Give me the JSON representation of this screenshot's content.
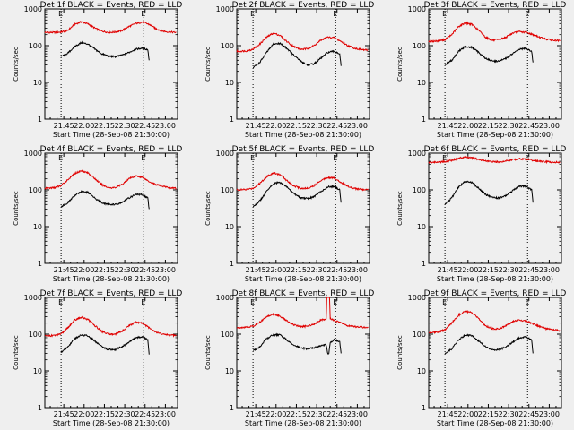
{
  "figure": {
    "background": "#efefef",
    "series_colors": {
      "events": "#000000",
      "lld": "#e00000"
    },
    "x_tick_labels": [
      "21:45",
      "22:00",
      "22:15",
      "22:30",
      "22:45",
      "23:00"
    ],
    "y_tick_labels": [
      "1",
      "10",
      "100",
      "1000"
    ],
    "x_axis_label": "Start Time (28-Sep-08 21:30:00)",
    "y_axis_label": "Counts/sec",
    "marker_label_start": "E",
    "marker_label_end": "E"
  },
  "chart_data": [
    {
      "type": "line",
      "title": "Det 1f BLACK = Events, RED = LLD",
      "xlabel": "Start Time (28-Sep-08 21:30:00)",
      "ylabel": "Counts/sec",
      "y_scale": "log",
      "xlim": [
        "21:31",
        "23:09"
      ],
      "ylim": [
        1,
        1000
      ],
      "markers": [
        "21:43",
        "22:44"
      ],
      "series": [
        {
          "color": "#e00000",
          "x": [
            "21:31",
            "21:38",
            "21:43",
            "21:48",
            "21:53",
            "21:58",
            "22:03",
            "22:08",
            "22:13",
            "22:18",
            "22:23",
            "22:28",
            "22:33",
            "22:38",
            "22:43",
            "22:48",
            "22:53",
            "22:58",
            "23:03",
            "23:08"
          ],
          "values": [
            230,
            230,
            235,
            260,
            380,
            450,
            390,
            300,
            250,
            230,
            235,
            260,
            330,
            400,
            440,
            380,
            290,
            250,
            235,
            230
          ]
        },
        {
          "color": "#000000",
          "x": [
            "21:43",
            "21:48",
            "21:53",
            "21:58",
            "22:03",
            "22:08",
            "22:13",
            "22:18",
            "22:23",
            "22:28",
            "22:33",
            "22:38",
            "22:43",
            "22:47",
            "22:48"
          ],
          "values": [
            50,
            62,
            95,
            120,
            110,
            80,
            60,
            52,
            50,
            55,
            65,
            80,
            85,
            78,
            40
          ]
        }
      ]
    },
    {
      "type": "line",
      "title": "Det 2f BLACK = Events, RED = LLD",
      "xlabel": "Start Time (28-Sep-08 21:30:00)",
      "ylabel": "Counts/sec",
      "y_scale": "log",
      "xlim": [
        "21:31",
        "23:09"
      ],
      "ylim": [
        1,
        1000
      ],
      "markers": [
        "21:43",
        "22:44"
      ],
      "series": [
        {
          "color": "#e00000",
          "x": [
            "21:31",
            "21:38",
            "21:43",
            "21:48",
            "21:53",
            "21:58",
            "22:03",
            "22:08",
            "22:13",
            "22:18",
            "22:23",
            "22:28",
            "22:33",
            "22:38",
            "22:43",
            "22:48",
            "22:53",
            "22:58",
            "23:03",
            "23:08"
          ],
          "values": [
            70,
            72,
            80,
            110,
            170,
            220,
            190,
            130,
            95,
            80,
            82,
            100,
            140,
            170,
            165,
            130,
            100,
            85,
            78,
            75
          ]
        },
        {
          "color": "#000000",
          "x": [
            "21:43",
            "21:48",
            "21:53",
            "21:58",
            "22:03",
            "22:08",
            "22:13",
            "22:18",
            "22:23",
            "22:28",
            "22:33",
            "22:38",
            "22:43",
            "22:47",
            "22:48"
          ],
          "values": [
            25,
            35,
            65,
            110,
            115,
            85,
            55,
            38,
            30,
            32,
            45,
            65,
            70,
            60,
            28
          ]
        }
      ]
    },
    {
      "type": "line",
      "title": "Det 3f BLACK = Events, RED = LLD",
      "xlabel": "Start Time (28-Sep-08 21:30:00)",
      "ylabel": "Counts/sec",
      "y_scale": "log",
      "xlim": [
        "21:31",
        "23:09"
      ],
      "ylim": [
        1,
        1000
      ],
      "markers": [
        "21:43",
        "22:44"
      ],
      "series": [
        {
          "color": "#e00000",
          "x": [
            "21:31",
            "21:38",
            "21:43",
            "21:48",
            "21:53",
            "21:58",
            "22:03",
            "22:08",
            "22:13",
            "22:18",
            "22:23",
            "22:28",
            "22:33",
            "22:38",
            "22:43",
            "22:48",
            "22:53",
            "22:58",
            "23:03",
            "23:08"
          ],
          "values": [
            130,
            135,
            145,
            200,
            330,
            420,
            380,
            260,
            170,
            140,
            145,
            170,
            220,
            240,
            230,
            200,
            170,
            150,
            140,
            135
          ]
        },
        {
          "color": "#000000",
          "x": [
            "21:43",
            "21:48",
            "21:53",
            "21:58",
            "22:03",
            "22:08",
            "22:13",
            "22:18",
            "22:23",
            "22:28",
            "22:33",
            "22:38",
            "22:43",
            "22:47",
            "22:48"
          ],
          "values": [
            30,
            40,
            70,
            95,
            90,
            65,
            45,
            38,
            38,
            45,
            60,
            80,
            85,
            70,
            35
          ]
        }
      ]
    },
    {
      "type": "line",
      "title": "Det 4f BLACK = Events, RED = LLD",
      "xlabel": "Start Time (28-Sep-08 21:30:00)",
      "ylabel": "Counts/sec",
      "y_scale": "log",
      "xlim": [
        "21:31",
        "23:09"
      ],
      "ylim": [
        1,
        1000
      ],
      "markers": [
        "21:43",
        "22:44"
      ],
      "series": [
        {
          "color": "#e00000",
          "x": [
            "21:31",
            "21:38",
            "21:43",
            "21:48",
            "21:53",
            "21:58",
            "22:03",
            "22:08",
            "22:13",
            "22:18",
            "22:23",
            "22:28",
            "22:33",
            "22:38",
            "22:43",
            "22:48",
            "22:53",
            "22:58",
            "23:03",
            "23:08"
          ],
          "values": [
            110,
            115,
            130,
            190,
            280,
            330,
            290,
            200,
            140,
            115,
            115,
            140,
            200,
            240,
            220,
            170,
            140,
            125,
            115,
            110
          ]
        },
        {
          "color": "#000000",
          "x": [
            "21:43",
            "21:48",
            "21:53",
            "21:58",
            "22:03",
            "22:08",
            "22:13",
            "22:18",
            "22:23",
            "22:28",
            "22:33",
            "22:38",
            "22:43",
            "22:47",
            "22:48"
          ],
          "values": [
            35,
            45,
            70,
            90,
            85,
            60,
            45,
            40,
            40,
            45,
            60,
            75,
            75,
            60,
            30
          ]
        }
      ]
    },
    {
      "type": "line",
      "title": "Det 5f BLACK = Events, RED = LLD",
      "xlabel": "Start Time (28-Sep-08 21:30:00)",
      "ylabel": "Counts/sec",
      "y_scale": "log",
      "xlim": [
        "21:31",
        "23:09"
      ],
      "ylim": [
        1,
        1000
      ],
      "markers": [
        "21:43",
        "22:44"
      ],
      "series": [
        {
          "color": "#e00000",
          "x": [
            "21:31",
            "21:38",
            "21:43",
            "21:48",
            "21:53",
            "21:58",
            "22:03",
            "22:08",
            "22:13",
            "22:18",
            "22:23",
            "22:28",
            "22:33",
            "22:38",
            "22:43",
            "22:48",
            "22:53",
            "22:58",
            "23:03",
            "23:08"
          ],
          "values": [
            100,
            102,
            110,
            150,
            230,
            290,
            260,
            180,
            130,
            110,
            110,
            130,
            180,
            220,
            210,
            160,
            125,
            110,
            102,
            100
          ]
        },
        {
          "color": "#000000",
          "x": [
            "21:43",
            "21:48",
            "21:53",
            "21:58",
            "22:03",
            "22:08",
            "22:13",
            "22:18",
            "22:23",
            "22:28",
            "22:33",
            "22:38",
            "22:43",
            "22:47",
            "22:48"
          ],
          "values": [
            35,
            50,
            90,
            150,
            160,
            120,
            80,
            62,
            58,
            65,
            90,
            120,
            125,
            100,
            45
          ]
        }
      ]
    },
    {
      "type": "line",
      "title": "Det 6f BLACK = Events, RED = LLD",
      "xlabel": "Start Time (28-Sep-08 21:30:00)",
      "ylabel": "Counts/sec",
      "y_scale": "log",
      "xlim": [
        "21:31",
        "23:09"
      ],
      "ylim": [
        1,
        1000
      ],
      "markers": [
        "21:43",
        "22:44"
      ],
      "series": [
        {
          "color": "#e00000",
          "x": [
            "21:31",
            "21:38",
            "21:43",
            "21:48",
            "21:53",
            "21:58",
            "22:03",
            "22:08",
            "22:13",
            "22:18",
            "22:23",
            "22:28",
            "22:33",
            "22:38",
            "22:43",
            "22:48",
            "22:53",
            "22:58",
            "23:03",
            "23:08"
          ],
          "values": [
            560,
            570,
            590,
            640,
            720,
            780,
            740,
            670,
            610,
            580,
            580,
            610,
            660,
            700,
            690,
            640,
            600,
            580,
            570,
            560
          ]
        },
        {
          "color": "#000000",
          "x": [
            "21:43",
            "21:48",
            "21:53",
            "21:58",
            "22:03",
            "22:08",
            "22:13",
            "22:18",
            "22:23",
            "22:28",
            "22:33",
            "22:38",
            "22:43",
            "22:47",
            "22:48"
          ],
          "values": [
            40,
            60,
            120,
            170,
            160,
            110,
            75,
            62,
            60,
            70,
            95,
            125,
            125,
            100,
            45
          ]
        }
      ]
    },
    {
      "type": "line",
      "title": "Det 7f BLACK = Events, RED = LLD",
      "xlabel": "Start Time (28-Sep-08 21:30:00)",
      "ylabel": "Counts/sec",
      "y_scale": "log",
      "xlim": [
        "21:31",
        "23:09"
      ],
      "ylim": [
        1,
        1000
      ],
      "markers": [
        "21:43",
        "22:44"
      ],
      "series": [
        {
          "color": "#e00000",
          "x": [
            "21:31",
            "21:38",
            "21:43",
            "21:48",
            "21:53",
            "21:58",
            "22:03",
            "22:08",
            "22:13",
            "22:18",
            "22:23",
            "22:28",
            "22:33",
            "22:38",
            "22:43",
            "22:48",
            "22:53",
            "22:58",
            "23:03",
            "23:08"
          ],
          "values": [
            90,
            92,
            100,
            150,
            240,
            290,
            250,
            170,
            120,
            100,
            100,
            120,
            170,
            210,
            200,
            150,
            115,
            100,
            95,
            92
          ]
        },
        {
          "color": "#000000",
          "x": [
            "21:43",
            "21:48",
            "21:53",
            "21:58",
            "22:03",
            "22:08",
            "22:13",
            "22:18",
            "22:23",
            "22:28",
            "22:33",
            "22:38",
            "22:43",
            "22:47",
            "22:48"
          ],
          "values": [
            32,
            45,
            75,
            95,
            90,
            65,
            45,
            38,
            38,
            45,
            60,
            80,
            85,
            70,
            28
          ]
        }
      ]
    },
    {
      "type": "line",
      "title": "Det 8f BLACK = Events, RED = LLD",
      "xlabel": "Start Time (28-Sep-08 21:30:00)",
      "ylabel": "Counts/sec",
      "y_scale": "log",
      "xlim": [
        "21:31",
        "23:09"
      ],
      "ylim": [
        1,
        1000
      ],
      "markers": [
        "21:43",
        "22:44"
      ],
      "series": [
        {
          "color": "#e00000",
          "x": [
            "21:31",
            "21:38",
            "21:43",
            "21:48",
            "21:53",
            "21:58",
            "22:03",
            "22:08",
            "22:13",
            "22:18",
            "22:23",
            "22:28",
            "22:33",
            "22:37",
            "22:37.5",
            "22:38",
            "22:39",
            "22:39.5",
            "22:40",
            "22:43",
            "22:48",
            "22:53",
            "22:58",
            "23:03",
            "23:08"
          ],
          "values": [
            150,
            155,
            165,
            210,
            300,
            350,
            310,
            230,
            180,
            160,
            165,
            190,
            240,
            260,
            1000,
            1000,
            1000,
            1000,
            260,
            240,
            200,
            170,
            160,
            155,
            150
          ]
        },
        {
          "color": "#000000",
          "x": [
            "21:43",
            "21:48",
            "21:53",
            "21:58",
            "22:03",
            "22:08",
            "22:13",
            "22:18",
            "22:23",
            "22:28",
            "22:33",
            "22:37",
            "22:38",
            "22:39",
            "22:40",
            "22:43",
            "22:47",
            "22:48"
          ],
          "values": [
            35,
            45,
            75,
            95,
            95,
            70,
            50,
            42,
            40,
            42,
            48,
            52,
            30,
            30,
            60,
            70,
            62,
            30
          ]
        }
      ]
    },
    {
      "type": "line",
      "title": "Det 9f BLACK = Events, RED = LLD",
      "xlabel": "Start Time (28-Sep-08 21:30:00)",
      "ylabel": "Counts/sec",
      "y_scale": "log",
      "xlim": [
        "21:31",
        "23:09"
      ],
      "ylim": [
        1,
        1000
      ],
      "markers": [
        "21:43",
        "22:44"
      ],
      "series": [
        {
          "color": "#e00000",
          "x": [
            "21:31",
            "21:38",
            "21:43",
            "21:48",
            "21:53",
            "21:58",
            "22:03",
            "22:08",
            "22:13",
            "22:18",
            "22:23",
            "22:28",
            "22:33",
            "22:38",
            "22:43",
            "22:48",
            "22:53",
            "22:58",
            "23:03",
            "23:08"
          ],
          "values": [
            110,
            115,
            130,
            200,
            330,
            420,
            380,
            260,
            170,
            140,
            140,
            170,
            220,
            240,
            230,
            190,
            160,
            140,
            130,
            125
          ]
        },
        {
          "color": "#000000",
          "x": [
            "21:43",
            "21:48",
            "21:53",
            "21:58",
            "22:03",
            "22:08",
            "22:13",
            "22:18",
            "22:23",
            "22:28",
            "22:33",
            "22:38",
            "22:43",
            "22:47",
            "22:48"
          ],
          "values": [
            30,
            40,
            70,
            95,
            90,
            65,
            45,
            38,
            38,
            45,
            60,
            80,
            85,
            70,
            30
          ]
        }
      ]
    }
  ]
}
